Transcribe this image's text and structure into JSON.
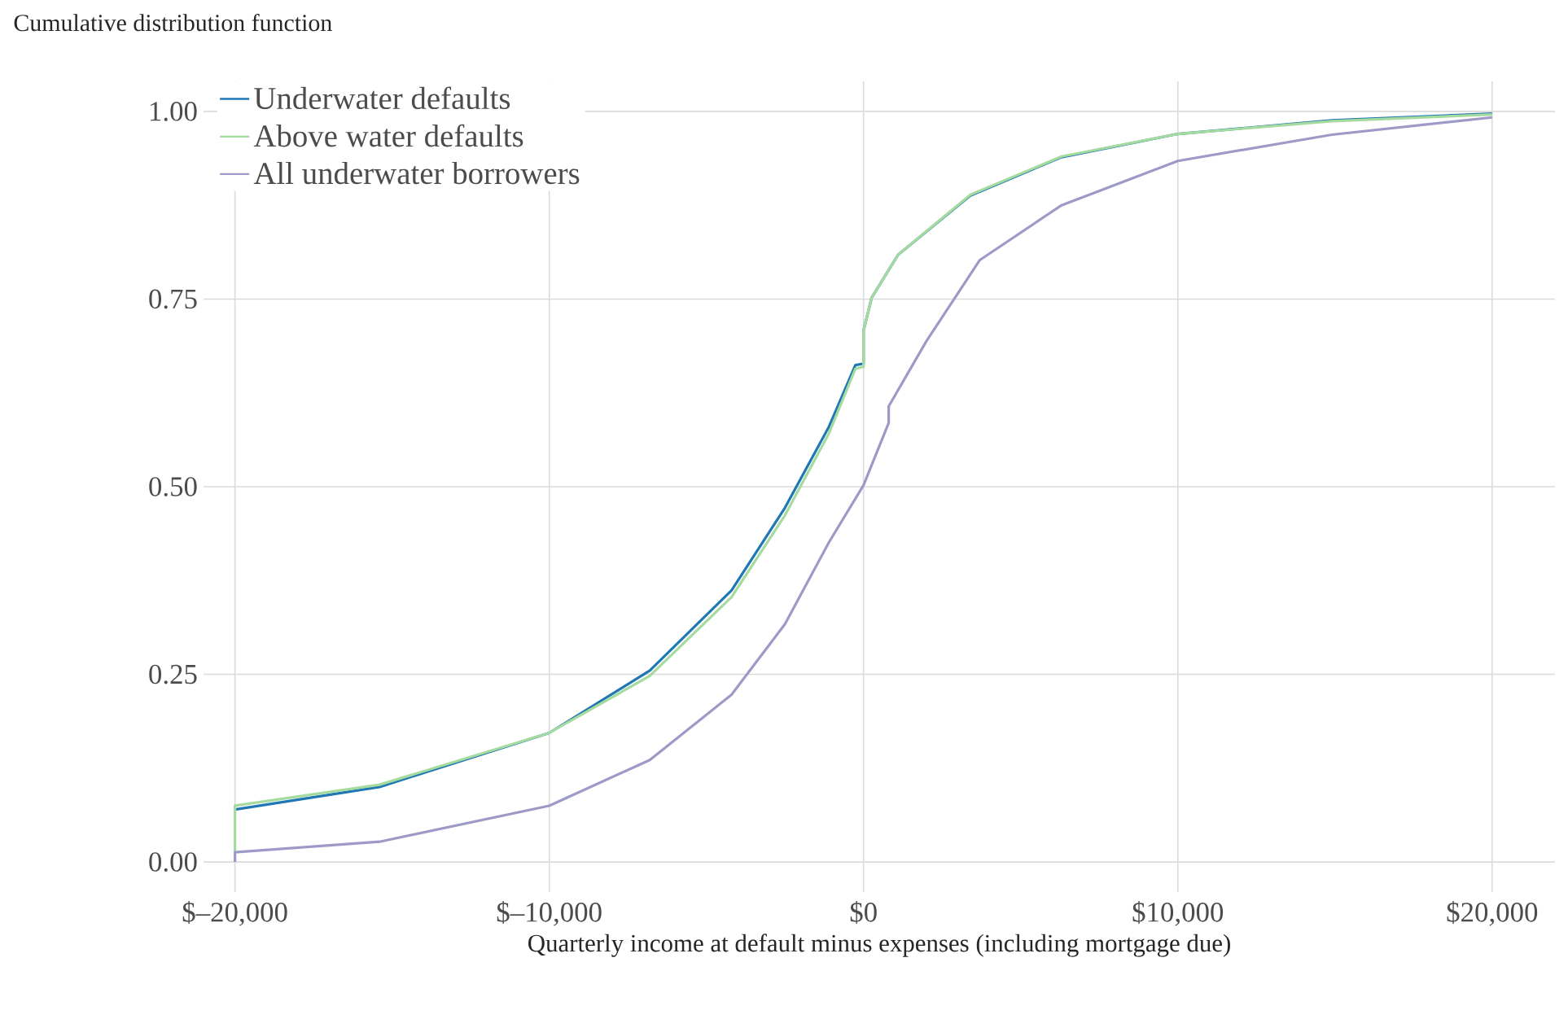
{
  "chart_data": {
    "type": "line",
    "ylabel": "Cumulative distribution function",
    "xlabel": "Quarterly income at default minus expenses (including mortgage due)",
    "xlim": [
      -21000,
      22000
    ],
    "ylim": [
      -0.04,
      1.04
    ],
    "xticks": [
      {
        "value": -20000,
        "label": "$–20,000"
      },
      {
        "value": -10000,
        "label": "$–10,000"
      },
      {
        "value": 0,
        "label": "$0"
      },
      {
        "value": 10000,
        "label": "$10,000"
      },
      {
        "value": 20000,
        "label": "$20,000"
      }
    ],
    "yticks": [
      {
        "value": 0,
        "label": "0.00"
      },
      {
        "value": 0.25,
        "label": "0.25"
      },
      {
        "value": 0.5,
        "label": "0.50"
      },
      {
        "value": 0.75,
        "label": "0.75"
      },
      {
        "value": 1,
        "label": "1.00"
      }
    ],
    "grid": true,
    "legend": "top left",
    "series": [
      {
        "name": "Underwater defaults",
        "color": "#1f78b4",
        "x": [
          -20000,
          -15400,
          -10000,
          -6800,
          -4200,
          -2500,
          -1100,
          -260,
          0,
          0,
          260,
          1100,
          3400,
          6300,
          10000,
          14900,
          20000
        ],
        "values": [
          0.07,
          0.1,
          0.172,
          0.255,
          0.362,
          0.472,
          0.58,
          0.662,
          0.664,
          0.708,
          0.752,
          0.809,
          0.888,
          0.939,
          0.97,
          0.988,
          0.997
        ]
      },
      {
        "name": "Above water defaults",
        "color": "#a6dba0",
        "x": [
          -20000,
          -20000,
          -15400,
          -10000,
          -6800,
          -4200,
          -2500,
          -1100,
          -260,
          0,
          0,
          260,
          1100,
          3400,
          6300,
          10000,
          14900,
          20000
        ],
        "values": [
          0.013,
          0.075,
          0.103,
          0.172,
          0.248,
          0.353,
          0.462,
          0.571,
          0.657,
          0.66,
          0.708,
          0.752,
          0.809,
          0.889,
          0.94,
          0.97,
          0.987,
          0.996
        ]
      },
      {
        "name": "All underwater borrowers",
        "color": "#9e9ac8",
        "x": [
          -20000,
          -20000,
          -15400,
          -10000,
          -6800,
          -4200,
          -2500,
          -1100,
          0,
          800,
          800,
          2000,
          3700,
          6300,
          10000,
          14900,
          20000
        ],
        "values": [
          0.0,
          0.013,
          0.027,
          0.075,
          0.136,
          0.223,
          0.317,
          0.426,
          0.502,
          0.585,
          0.607,
          0.694,
          0.802,
          0.875,
          0.934,
          0.969,
          0.992
        ]
      }
    ]
  }
}
